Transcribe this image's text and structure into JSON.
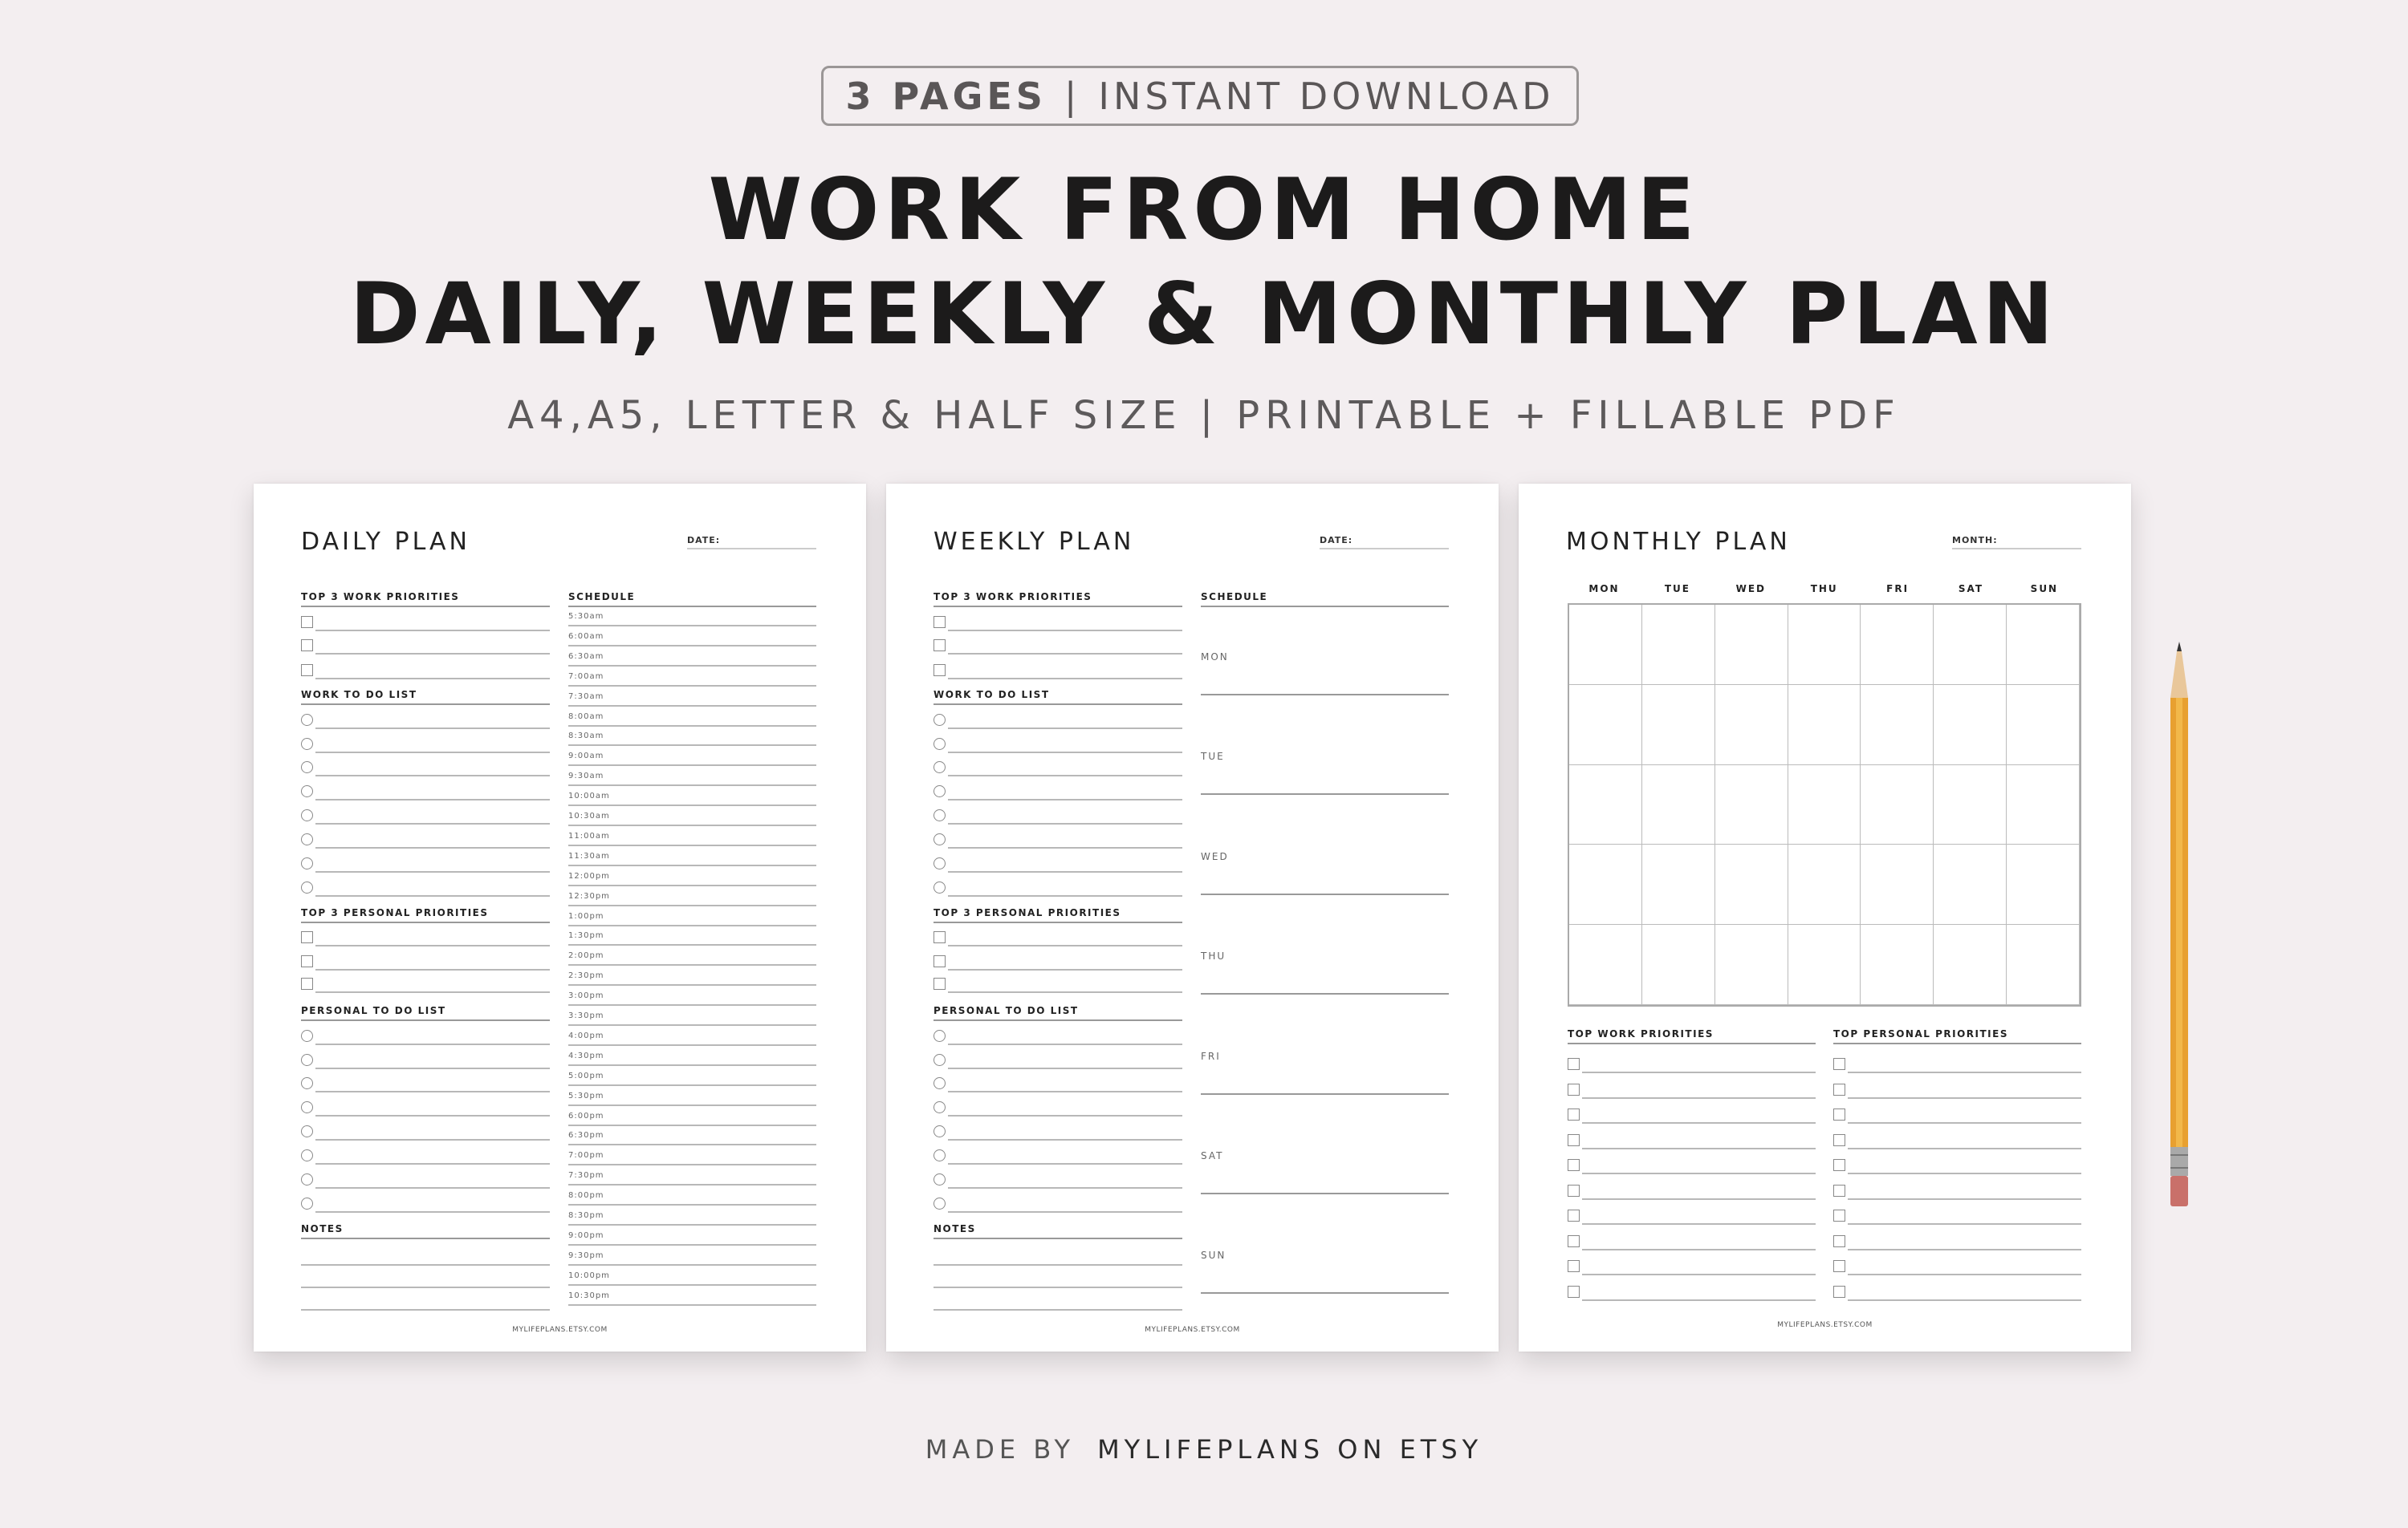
{
  "badge": {
    "pages": "3 PAGES",
    "separator": "|",
    "download": "INSTANT DOWNLOAD"
  },
  "title": {
    "line1": "WORK FROM HOME",
    "line2": "DAILY, WEEKLY & MONTHLY PLAN"
  },
  "subtitle": "A4,A5, LETTER & HALF SIZE  | PRINTABLE + FILLABLE PDF",
  "daily": {
    "title": "DAILY PLAN",
    "date_label": "DATE:",
    "sections": [
      "TOP 3 WORK PRIORITIES",
      "WORK TO DO LIST",
      "TOP 3 PERSONAL PRIORITIES",
      "PERSONAL TO DO LIST",
      "NOTES"
    ],
    "schedule_label": "SCHEDULE",
    "times": [
      "5:30am",
      "6:00am",
      "6:30am",
      "7:00am",
      "7:30am",
      "8:00am",
      "8:30am",
      "9:00am",
      "9:30am",
      "10:00am",
      "10:30am",
      "11:00am",
      "11:30am",
      "12:00pm",
      "12:30pm",
      "1:00pm",
      "1:30pm",
      "2:00pm",
      "2:30pm",
      "3:00pm",
      "3:30pm",
      "4:00pm",
      "4:30pm",
      "5:00pm",
      "5:30pm",
      "6:00pm",
      "6:30pm",
      "7:00pm",
      "7:30pm",
      "8:00pm",
      "8:30pm",
      "9:00pm",
      "9:30pm",
      "10:00pm",
      "10:30pm"
    ],
    "footer": "MYLIFEPLANS.ETSY.COM"
  },
  "weekly": {
    "title": "WEEKLY PLAN",
    "date_label": "DATE:",
    "sections": [
      "TOP 3 WORK PRIORITIES",
      "WORK TO DO LIST",
      "TOP 3 PERSONAL PRIORITIES",
      "PERSONAL TO DO LIST",
      "NOTES"
    ],
    "schedule_label": "SCHEDULE",
    "days": [
      "MON",
      "TUE",
      "WED",
      "THU",
      "FRI",
      "SAT",
      "SUN"
    ],
    "footer": "MYLIFEPLANS.ETSY.COM"
  },
  "monthly": {
    "title": "MONTHLY PLAN",
    "month_label": "MONTH:",
    "days": [
      "MON",
      "TUE",
      "WED",
      "THU",
      "FRI",
      "SAT",
      "SUN"
    ],
    "sections": [
      "TOP WORK PRIORITIES",
      "TOP PERSONAL PRIORITIES"
    ],
    "footer": "MYLIFEPLANS.ETSY.COM"
  },
  "made_by": {
    "prefix": "MADE BY",
    "name": "MYLIFEPLANS ON ETSY"
  },
  "colors": {
    "background": "#f3eef0",
    "pencil": "#e8a030",
    "eraser": "#c9706a"
  }
}
